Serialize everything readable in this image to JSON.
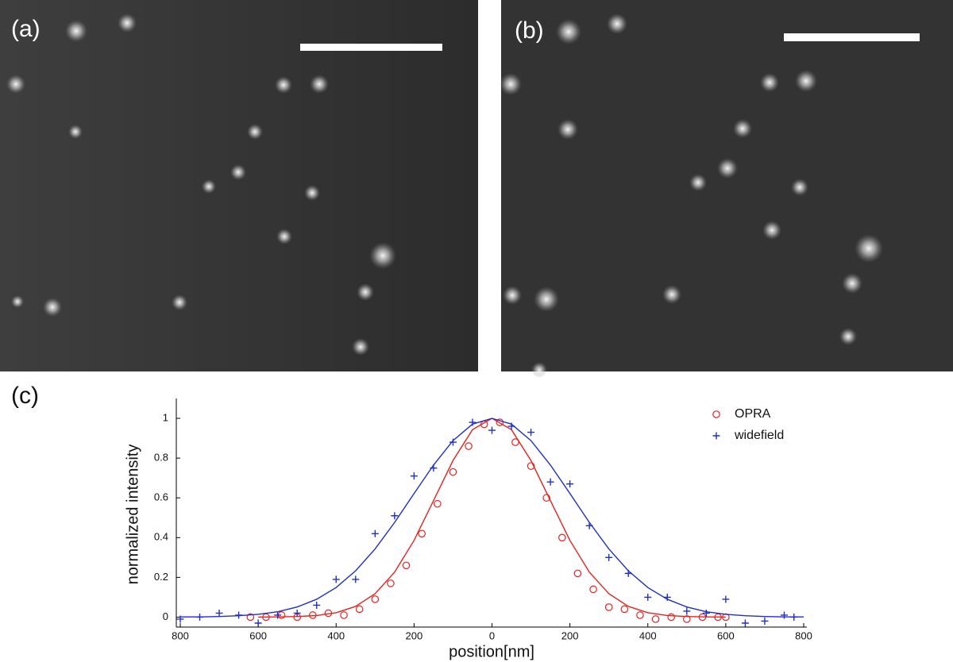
{
  "panels": {
    "a": "(a)",
    "b": "(b)",
    "c": "(c)"
  },
  "chart_data": {
    "type": "scatter",
    "xlabel": "position[nm]",
    "ylabel": "normalized intensity",
    "xlim": [
      -800,
      800
    ],
    "ylim": [
      -0.05,
      1.1
    ],
    "xticks": [
      {
        "value": -800,
        "label": "800"
      },
      {
        "value": -600,
        "label": "600"
      },
      {
        "value": -400,
        "label": "400"
      },
      {
        "value": -200,
        "label": "200"
      },
      0,
      200,
      400,
      600,
      800
    ],
    "yticks": [
      0,
      0.2,
      0.4,
      0.6,
      0.8,
      1
    ],
    "legend": "upper right",
    "series": [
      {
        "name": "OPRA",
        "color": "#e8211f",
        "marker": "circle",
        "x": [
          -620,
          -580,
          -540,
          -500,
          -460,
          -420,
          -380,
          -340,
          -300,
          -260,
          -220,
          -180,
          -140,
          -100,
          -60,
          -20,
          20,
          60,
          100,
          140,
          180,
          220,
          260,
          300,
          340,
          380,
          420,
          460,
          500,
          540,
          580,
          600
        ],
        "values": [
          0,
          0,
          0.01,
          0,
          0.01,
          0.02,
          0.01,
          0.04,
          0.09,
          0.17,
          0.26,
          0.42,
          0.57,
          0.73,
          0.86,
          0.97,
          0.98,
          0.88,
          0.76,
          0.6,
          0.4,
          0.22,
          0.14,
          0.05,
          0.04,
          0.01,
          -0.01,
          0,
          -0.01,
          0,
          0,
          0
        ],
        "fit": {
          "x": [
            -600,
            -550,
            -500,
            -450,
            -400,
            -350,
            -300,
            -250,
            -200,
            -150,
            -100,
            -50,
            0,
            50,
            100,
            150,
            200,
            250,
            300,
            350,
            400,
            450,
            500,
            550,
            600
          ],
          "values": [
            0,
            0.001,
            0.003,
            0.008,
            0.022,
            0.054,
            0.118,
            0.226,
            0.386,
            0.586,
            0.788,
            0.943,
            1,
            0.943,
            0.788,
            0.586,
            0.386,
            0.226,
            0.118,
            0.054,
            0.022,
            0.008,
            0.003,
            0.001,
            0
          ]
        }
      },
      {
        "name": "widefield",
        "color": "#1f2fc8",
        "marker": "plus",
        "x": [
          -800,
          -750,
          -700,
          -650,
          -600,
          -550,
          -500,
          -450,
          -400,
          -350,
          -300,
          -250,
          -200,
          -150,
          -100,
          -50,
          0,
          50,
          100,
          150,
          200,
          250,
          300,
          350,
          400,
          450,
          500,
          550,
          600,
          650,
          700,
          750,
          775
        ],
        "values": [
          -0.01,
          0,
          0.02,
          0.01,
          -0.03,
          0.01,
          0.02,
          0.06,
          0.19,
          0.19,
          0.42,
          0.51,
          0.71,
          0.75,
          0.88,
          0.98,
          0.94,
          0.96,
          0.93,
          0.68,
          0.67,
          0.46,
          0.3,
          0.22,
          0.1,
          0.1,
          0.03,
          0.02,
          0.09,
          -0.03,
          -0.02,
          0.01,
          0
        ],
        "fit": {
          "x": [
            -800,
            -750,
            -700,
            -650,
            -600,
            -550,
            -500,
            -450,
            -400,
            -350,
            -300,
            -250,
            -200,
            -150,
            -100,
            -50,
            0,
            50,
            100,
            150,
            200,
            250,
            300,
            350,
            400,
            450,
            500,
            550,
            600,
            650,
            700,
            750,
            800
          ],
          "values": [
            0.001,
            0.001,
            0.003,
            0.007,
            0.014,
            0.027,
            0.051,
            0.09,
            0.149,
            0.233,
            0.343,
            0.476,
            0.622,
            0.765,
            0.888,
            0.971,
            1,
            0.971,
            0.888,
            0.765,
            0.622,
            0.476,
            0.343,
            0.233,
            0.149,
            0.09,
            0.051,
            0.027,
            0.014,
            0.007,
            0.003,
            0.001,
            0.001
          ]
        }
      }
    ]
  }
}
